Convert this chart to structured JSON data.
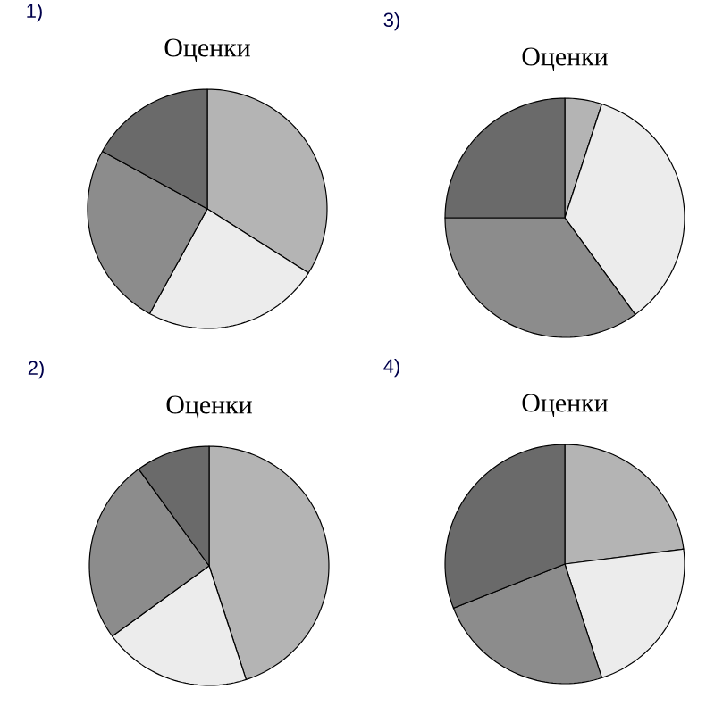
{
  "chart_data": [
    {
      "type": "pie",
      "title": "Оценки",
      "annotations": [
        "1)"
      ],
      "categories": [
        null,
        null,
        null,
        null
      ],
      "values": [
        34,
        24,
        25,
        17
      ],
      "colors": [
        "#b4b4b4",
        "#ececec",
        "#8c8c8c",
        "#6a6a6a"
      ]
    },
    {
      "type": "pie",
      "title": "Оценки",
      "annotations": [
        "3)"
      ],
      "categories": [
        null,
        null,
        null,
        null
      ],
      "values": [
        5,
        35,
        35,
        25
      ],
      "colors": [
        "#b4b4b4",
        "#ececec",
        "#8c8c8c",
        "#6a6a6a"
      ]
    },
    {
      "type": "pie",
      "title": "Оценки",
      "annotations": [
        "2)"
      ],
      "categories": [
        null,
        null,
        null,
        null
      ],
      "values": [
        45,
        20,
        25,
        10
      ],
      "colors": [
        "#b4b4b4",
        "#ececec",
        "#8c8c8c",
        "#6a6a6a"
      ]
    },
    {
      "type": "pie",
      "title": "Оценки",
      "annotations": [
        "4)"
      ],
      "categories": [
        null,
        null,
        null,
        null
      ],
      "values": [
        23,
        22,
        24,
        31
      ],
      "colors": [
        "#b4b4b4",
        "#ececec",
        "#8c8c8c",
        "#6a6a6a"
      ]
    }
  ]
}
